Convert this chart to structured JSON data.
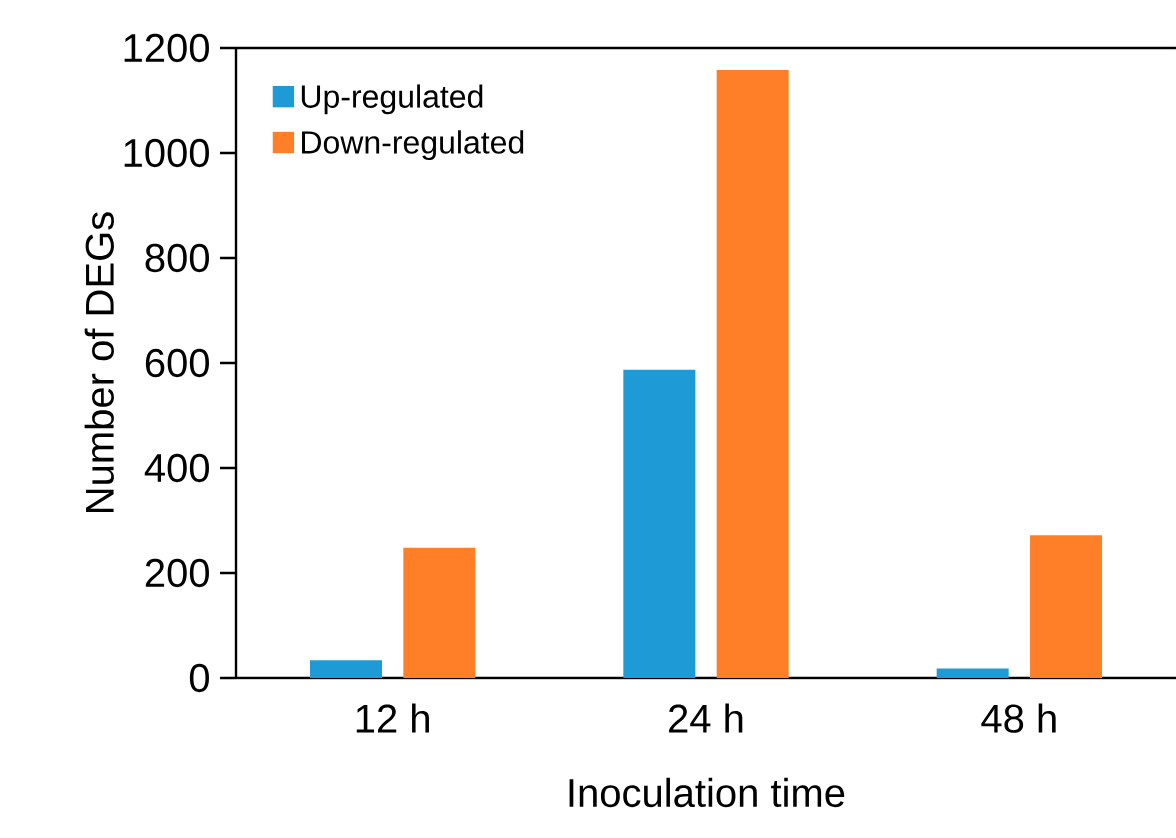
{
  "chart_data": {
    "type": "bar",
    "xlabel": "Inoculation time",
    "ylabel": "Number of DEGs",
    "categories": [
      "12 h",
      "24 h",
      "48 h"
    ],
    "series": [
      {
        "name": "Up-regulated",
        "color": "#1e9ad6",
        "values": [
          34,
          587,
          18
        ]
      },
      {
        "name": "Down-regulated",
        "color": "#fe7f27",
        "values": [
          248,
          1158,
          272
        ]
      }
    ],
    "ylim": [
      0,
      1200
    ],
    "yticks": [
      0,
      200,
      400,
      600,
      800,
      1000,
      1200
    ],
    "grid": false,
    "legend": "top left"
  }
}
